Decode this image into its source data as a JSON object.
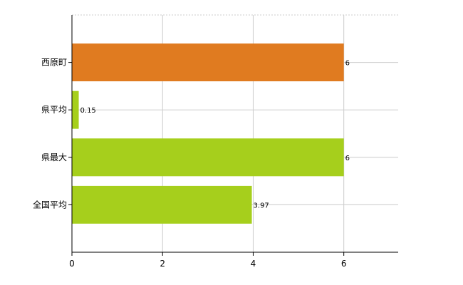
{
  "chart_data": {
    "type": "bar",
    "orientation": "horizontal",
    "categories": [
      "西原町",
      "県平均",
      "県最大",
      "全国平均"
    ],
    "values": [
      6,
      0.15,
      6,
      3.97
    ],
    "value_labels": [
      "6",
      "0.15",
      "6",
      "3.97"
    ],
    "bar_colors": [
      "#e07b20",
      "#a6cf1c",
      "#a6cf1c",
      "#a6cf1c"
    ],
    "x_ticks": [
      "0",
      "2",
      "4",
      "6"
    ],
    "xlim": [
      0,
      7.2
    ],
    "grid": true
  }
}
